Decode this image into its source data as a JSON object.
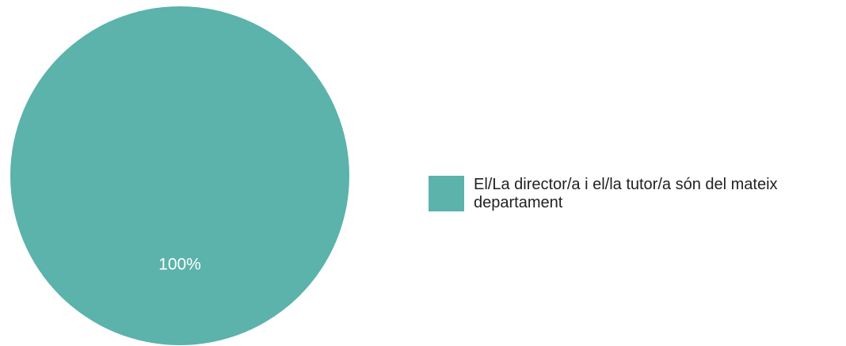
{
  "chart_data": {
    "type": "pie",
    "categories": [
      "El/La director/a i el/la tutor/a són del mateix departament"
    ],
    "values": [
      100
    ],
    "data_labels": [
      "100%"
    ],
    "colors": [
      "#5bb3ab"
    ],
    "legend_position": "right",
    "legend_lines": [
      [
        "El/La director/a i el/la tutor/a són del mateix",
        "departament"
      ]
    ]
  }
}
